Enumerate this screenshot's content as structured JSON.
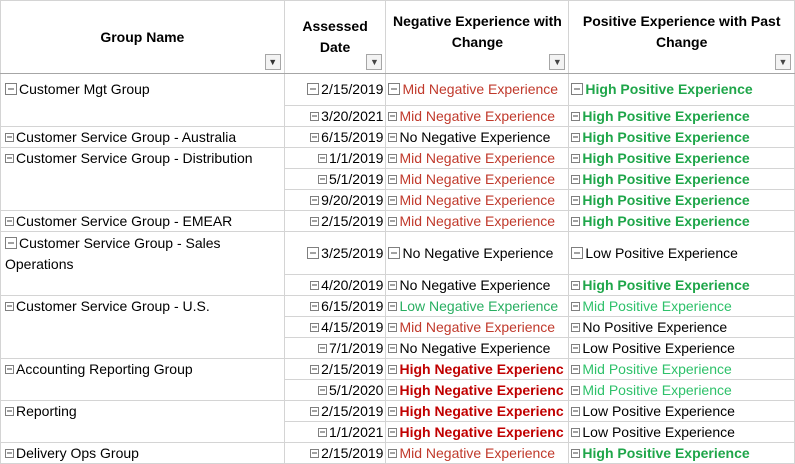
{
  "headers": {
    "group": "Group Name",
    "date": "Assessed Date",
    "negative": "Negative Experience with Change",
    "positive": "Positive Experience with Past Change"
  },
  "filter_icons": {
    "group": "filter-active-icon",
    "date": "dropdown-arrow-icon",
    "negative": "dropdown-arrow-icon",
    "positive": "dropdown-arrow-icon"
  },
  "colors": {
    "mid_negative": "#c0392b",
    "high_negative": "#c00000",
    "low_negative": "#27ae60",
    "high_positive": "#1fa64a",
    "mid_positive": "#2ec16a"
  },
  "rows": [
    {
      "group": "Customer Mgt Group",
      "date": "2/15/2019",
      "negative": "Mid Negative Experience",
      "positive": "High Positive Experience"
    },
    {
      "group": "",
      "date": "3/20/2021",
      "negative": "Mid Negative Experience",
      "positive": "High Positive Experience"
    },
    {
      "group": "Customer Service Group - Australia",
      "date": "6/15/2019",
      "negative": "No Negative Experience",
      "positive": "High Positive Experience"
    },
    {
      "group": "Customer Service Group - Distribution",
      "date": "1/1/2019",
      "negative": "Mid Negative Experience",
      "positive": "High Positive Experience"
    },
    {
      "group": "",
      "date": "5/1/2019",
      "negative": "Mid Negative Experience",
      "positive": "High Positive Experience"
    },
    {
      "group": "",
      "date": "9/20/2019",
      "negative": "Mid Negative Experience",
      "positive": "High Positive Experience"
    },
    {
      "group": "Customer Service Group - EMEAR",
      "date": "2/15/2019",
      "negative": "Mid Negative Experience",
      "positive": "High Positive Experience"
    },
    {
      "group": "Customer Service Group - Sales Operations",
      "date": "3/25/2019",
      "negative": "No Negative Experience",
      "positive": "Low Positive Experience"
    },
    {
      "group": "",
      "date": "4/20/2019",
      "negative": "No Negative Experience",
      "positive": "High Positive Experience"
    },
    {
      "group": "Customer Service Group - U.S.",
      "date": "6/15/2019",
      "negative": "Low Negative Experience",
      "positive": "Mid Positive Experience"
    },
    {
      "group": "",
      "date": "4/15/2019",
      "negative": "Mid Negative Experience",
      "positive": "No Positive Experience"
    },
    {
      "group": "",
      "date": "7/1/2019",
      "negative": "No Negative Experience",
      "positive": "Low Positive Experience"
    },
    {
      "group": "Accounting Reporting Group",
      "date": "2/15/2019",
      "negative": "High Negative Experienc",
      "positive": "Mid Positive Experience"
    },
    {
      "group": "",
      "date": "5/1/2020",
      "negative": "High Negative Experienc",
      "positive": "Mid Positive Experience"
    },
    {
      "group": "Reporting",
      "date": "2/15/2019",
      "negative": "High Negative Experienc",
      "positive": "Low Positive Experience"
    },
    {
      "group": "",
      "date": "1/1/2021",
      "negative": "High Negative Experienc",
      "positive": "Low Positive Experience"
    },
    {
      "group": "Delivery Ops Group",
      "date": "2/15/2019",
      "negative": "Mid Negative Experience",
      "positive": "High Positive Experience"
    }
  ]
}
